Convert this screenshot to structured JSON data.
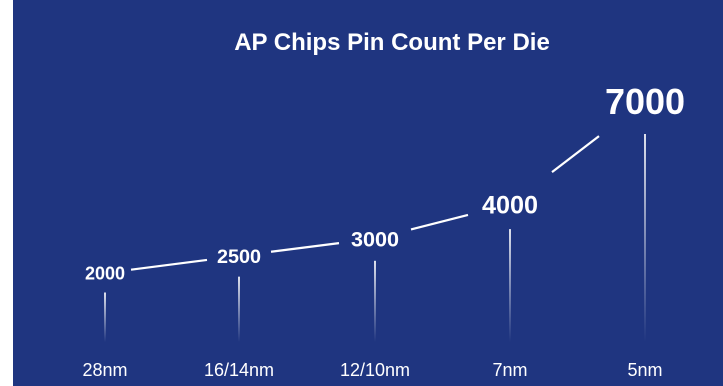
{
  "chart_data": {
    "type": "line",
    "title": "AP Chips Pin Count Per Die",
    "categories": [
      "28nm",
      "16/14nm",
      "12/10nm",
      "7nm",
      "5nm"
    ],
    "values": [
      2000,
      2500,
      3000,
      4000,
      7000
    ],
    "data_labels": [
      "2000",
      "2500",
      "3000",
      "4000",
      "7000"
    ],
    "xlabel": "",
    "ylabel": "",
    "grid": false,
    "legend": "none",
    "colors": {
      "background": "#1f3580",
      "line": "#ffffff",
      "text": "#ffffff"
    }
  }
}
